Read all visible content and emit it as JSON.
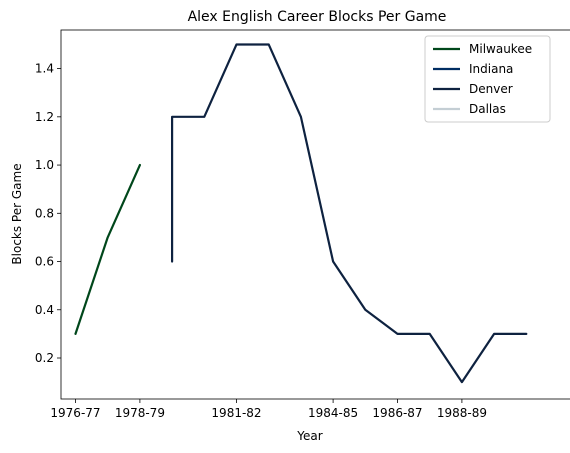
{
  "chart_data": {
    "type": "line",
    "title": "Alex English Career Blocks Per Game",
    "xlabel": "Year",
    "ylabel": "Blocks Per Game",
    "ylim": [
      0.03,
      1.56
    ],
    "x_tick_labels": [
      "1976-77",
      "1978-79",
      "1981-82",
      "1984-85",
      "1986-87",
      "1988-89"
    ],
    "y_ticks": [
      0.2,
      0.4,
      0.6,
      0.8,
      1.0,
      1.2,
      1.4
    ],
    "y_tick_labels": [
      "0.2",
      "0.4",
      "0.6",
      "0.8",
      "1.0",
      "1.2",
      "1.4"
    ],
    "grid": false,
    "legend_position": "top-right",
    "series": [
      {
        "name": "Milwaukee",
        "color": "#00471B",
        "x": [
          "1976-77",
          "1977-78",
          "1978-79"
        ],
        "y": [
          0.3,
          0.7,
          1.0
        ]
      },
      {
        "name": "Indiana",
        "color": "#002D62",
        "x": [
          "1979-80"
        ],
        "y": [
          0.6
        ]
      },
      {
        "name": "Denver",
        "color": "#0E2240",
        "x": [
          "1979-80",
          "1979-80",
          "1980-81",
          "1981-82",
          "1982-83",
          "1983-84",
          "1984-85",
          "1985-86",
          "1986-87",
          "1987-88",
          "1988-89",
          "1989-90",
          "1990-91"
        ],
        "y": [
          0.6,
          1.2,
          1.2,
          1.5,
          1.5,
          1.2,
          0.6,
          0.4,
          0.3,
          0.3,
          0.1,
          0.3,
          0.3
        ]
      },
      {
        "name": "Dallas",
        "color": "#C4CED4",
        "x": [],
        "y": []
      }
    ]
  }
}
